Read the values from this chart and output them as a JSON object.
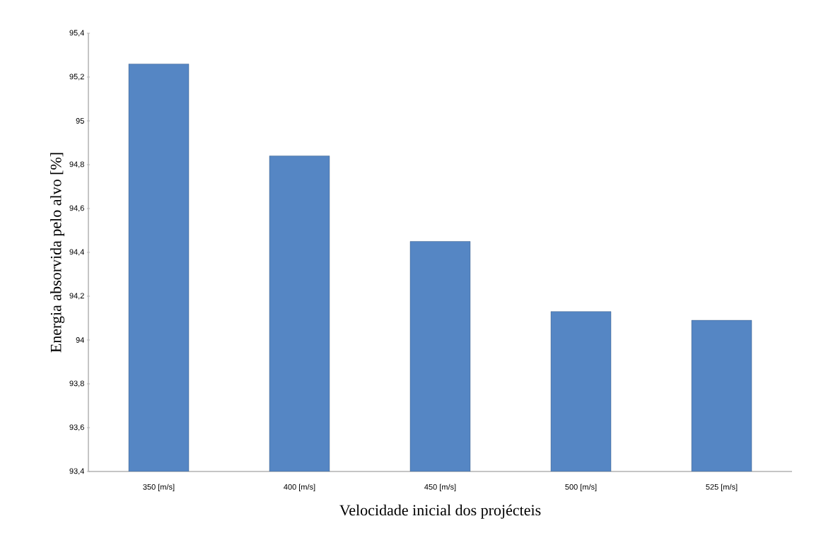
{
  "chart_data": {
    "type": "bar",
    "xlabel": "Velocidade inicial dos projécteis",
    "ylabel": "Energia absorvida pelo alvo [%]",
    "categories": [
      "350 [m/s]",
      "400 [m/s]",
      "450 [m/s]",
      "500 [m/s]",
      "525 [m/s]"
    ],
    "values": [
      95.26,
      94.84,
      94.45,
      94.13,
      94.09
    ],
    "color": "#5586c4",
    "ylim": [
      93.4,
      95.4
    ],
    "yticks": [
      {
        "value": 93.4,
        "label": "93,4"
      },
      {
        "value": 93.6,
        "label": "93,6"
      },
      {
        "value": 93.8,
        "label": "93,8"
      },
      94,
      {
        "value": 94.2,
        "label": "94,2"
      },
      {
        "value": 94.4,
        "label": "94,4"
      },
      {
        "value": 94.6,
        "label": "94,6"
      },
      {
        "value": 94.8,
        "label": "94,8"
      },
      95,
      {
        "value": 95.2,
        "label": "95,2"
      },
      {
        "value": 95.4,
        "label": "95,4"
      }
    ],
    "grid": false
  }
}
